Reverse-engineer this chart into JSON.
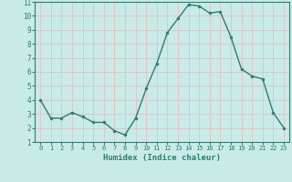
{
  "x": [
    0,
    1,
    2,
    3,
    4,
    5,
    6,
    7,
    8,
    9,
    10,
    11,
    12,
    13,
    14,
    15,
    16,
    17,
    18,
    19,
    20,
    21,
    22,
    23
  ],
  "y": [
    4.0,
    2.7,
    2.7,
    3.1,
    2.8,
    2.4,
    2.4,
    1.8,
    1.5,
    2.7,
    4.8,
    6.6,
    8.8,
    9.8,
    10.8,
    10.7,
    10.2,
    10.3,
    8.5,
    6.2,
    5.7,
    5.5,
    3.1,
    2.0
  ],
  "line_color": "#2e7d6e",
  "marker": "o",
  "marker_size": 2.0,
  "bg_color": "#c8ebe8",
  "grid_color": "#e8b8b8",
  "xlabel": "Humidex (Indice chaleur)",
  "ylim": [
    1,
    11
  ],
  "xlim": [
    -0.5,
    23.5
  ],
  "yticks": [
    1,
    2,
    3,
    4,
    5,
    6,
    7,
    8,
    9,
    10,
    11
  ],
  "xticks": [
    0,
    1,
    2,
    3,
    4,
    5,
    6,
    7,
    8,
    9,
    10,
    11,
    12,
    13,
    14,
    15,
    16,
    17,
    18,
    19,
    20,
    21,
    22,
    23
  ],
  "tick_color": "#2e7d6e",
  "label_color": "#2e7d6e",
  "spine_color": "#2e7d6e",
  "xlabel_fontsize": 6.5,
  "tick_fontsize_x": 5.0,
  "tick_fontsize_y": 5.5
}
